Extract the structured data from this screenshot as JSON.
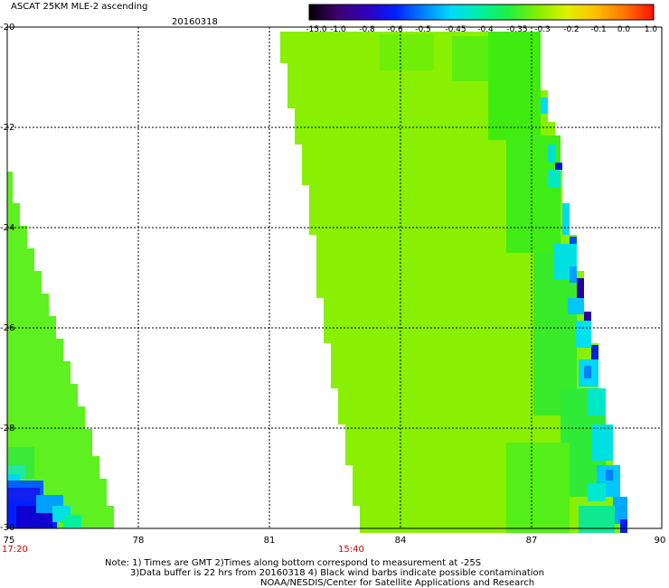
{
  "header": {
    "title": "ASCAT 25KM MLE-2 ascending",
    "date": "20160318"
  },
  "colorbar": {
    "labels": [
      "-15.0",
      "-1.0",
      "-0.8",
      "-0.6",
      "-0.5",
      "-0.45",
      "-0.4",
      "-0.35",
      "-0.3",
      "-0.2",
      "-0.1",
      "0.0",
      "1.0"
    ]
  },
  "axes": {
    "y_ticks": [
      "-20",
      "-22",
      "-24",
      "-26",
      "-28",
      "-30"
    ],
    "x_ticks": [
      "75",
      "78",
      "81",
      "84",
      "87",
      "90"
    ],
    "y_range": [
      -20,
      -30
    ],
    "x_range": [
      75,
      90
    ],
    "grid": true
  },
  "time_labels": [
    "17:20",
    "15:40"
  ],
  "notes": {
    "line1": "Note: 1) Times are GMT 2)Times along bottom correspond to measurement at -25S",
    "line2": "3)Data buffer is 22 hrs from 20160318 4) Black wind barbs indicate possible contamination",
    "line3": "NOAA/NESDIS/Center for Satellite Applications and Research"
  },
  "colors": {
    "background": "#ffffff",
    "swath_main": "#88f000",
    "swath_green": "#44ec10",
    "edge_cyan": "#00e8e8",
    "edge_blue": "#0040ff",
    "edge_dark": "#2000a0",
    "time_label": "#cc0000"
  }
}
